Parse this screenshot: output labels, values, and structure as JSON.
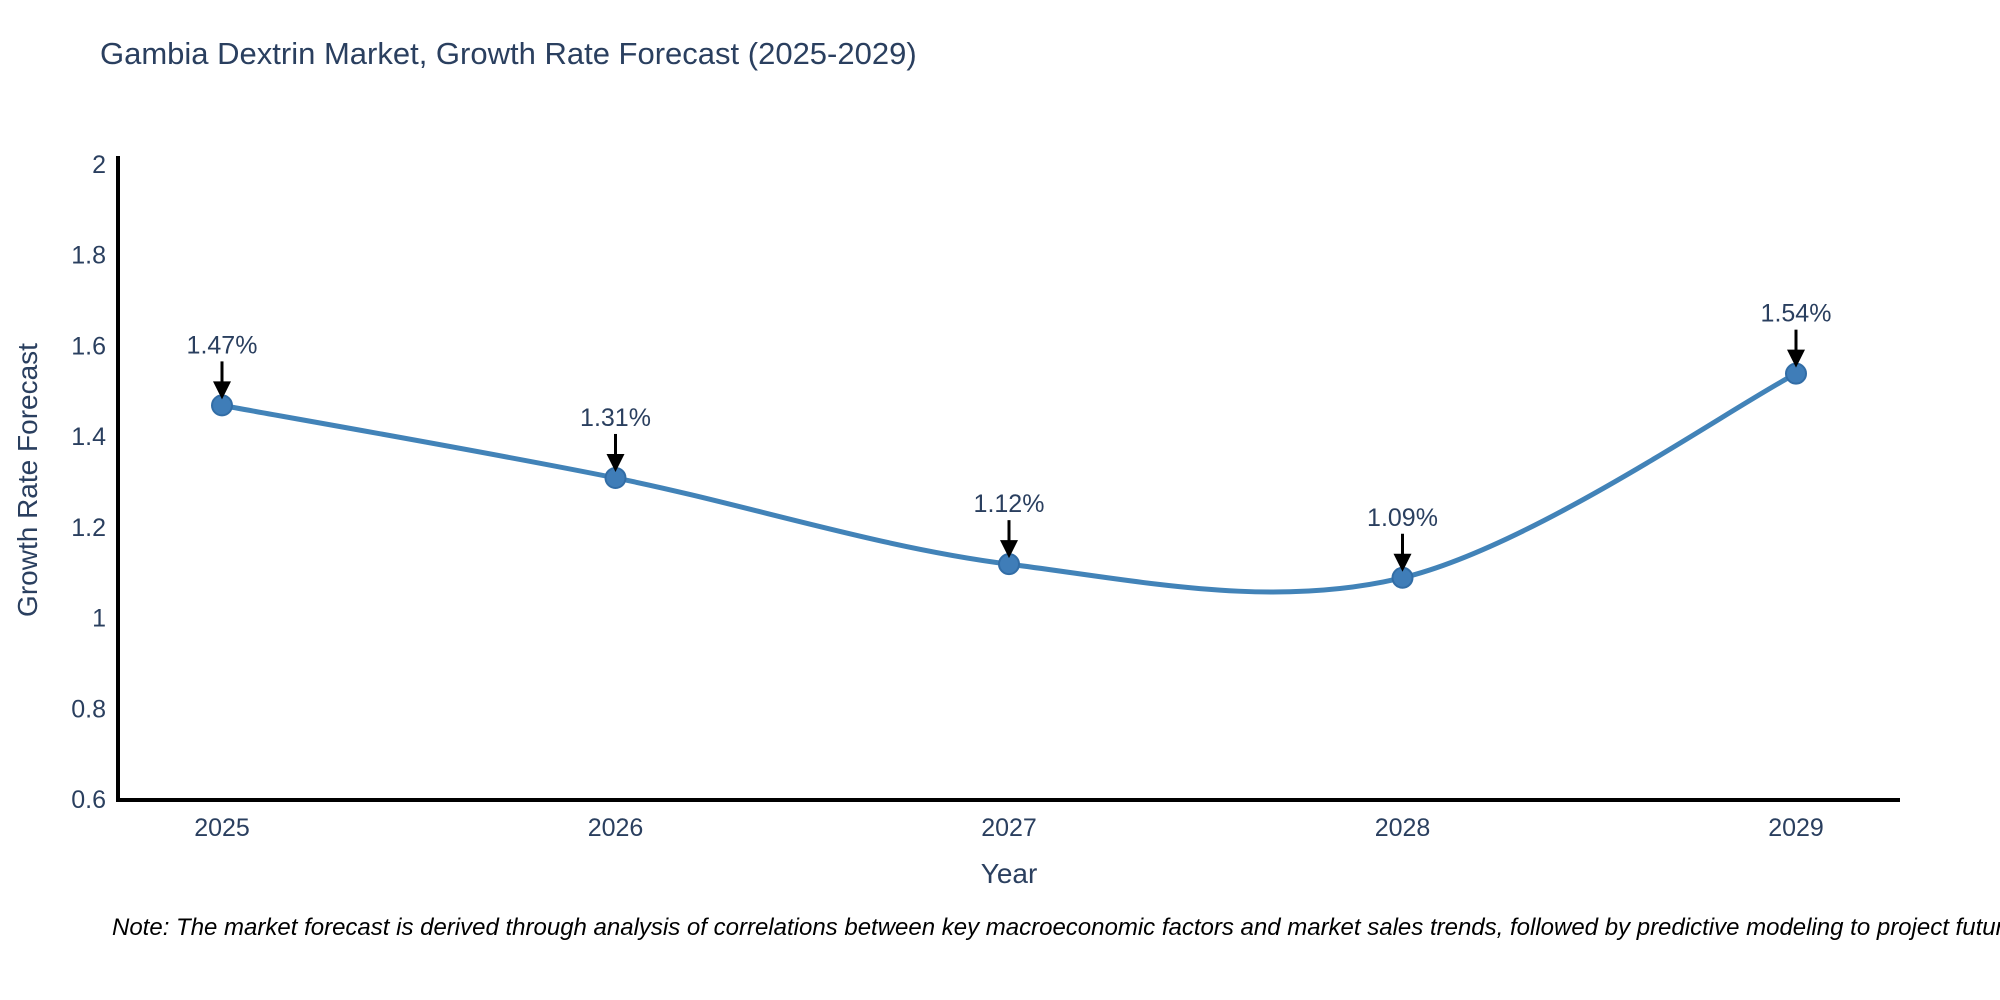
{
  "title": "Gambia Dextrin Market, Growth Rate Forecast (2025-2029)",
  "note": "Note: The market forecast is derived through analysis of correlations between key macroeconomic factors and market sales trends, followed by predictive modeling to project future sales",
  "chart_data": {
    "type": "line",
    "line_shape": "spline",
    "title": "Gambia Dextrin Market, Growth Rate Forecast (2025-2029)",
    "xlabel": "Year",
    "ylabel": "Growth Rate Forecast",
    "categories": [
      "2025",
      "2026",
      "2027",
      "2028",
      "2029"
    ],
    "values": [
      1.47,
      1.31,
      1.12,
      1.09,
      1.54
    ],
    "point_labels": [
      "1.47%",
      "1.31%",
      "1.12%",
      "1.09%",
      "1.54%"
    ],
    "ylim": [
      0.6,
      2.0
    ],
    "y_ticks": [
      0.6,
      0.8,
      1.0,
      1.2,
      1.4,
      1.6,
      1.8,
      2.0
    ],
    "y_tick_labels": [
      "0.6",
      "0.8",
      "1",
      "1.2",
      "1.4",
      "1.6",
      "1.8",
      "2"
    ],
    "grid": false,
    "legend": "none",
    "annotation_style": "value labels above points with downward black arrows",
    "colors": {
      "line": "#4283b8",
      "marker_fill": "#3f7db8",
      "marker_edge": "#326da6",
      "axis_line": "#000000",
      "tick_text": "#2a3f5f",
      "annotation_text": "#2a3f5f",
      "arrow": "#000000",
      "title_text": "#2a3f5f",
      "note_text": "#000000",
      "background": "#ffffff"
    }
  }
}
